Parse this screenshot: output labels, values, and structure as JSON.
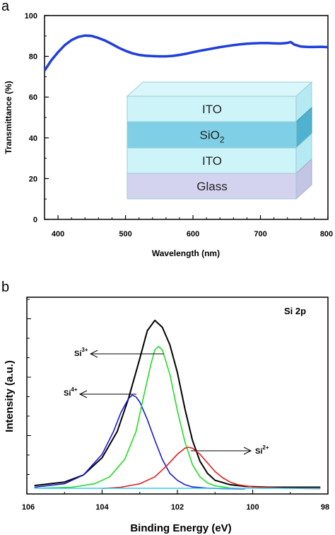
{
  "panel_a": {
    "letter": "a",
    "chart_data": {
      "type": "line",
      "title": "",
      "xlabel": "Wavelength (nm)",
      "ylabel": "Transmittance (%)",
      "xlim": [
        380,
        800
      ],
      "ylim": [
        0,
        100
      ],
      "xticks": [
        400,
        500,
        600,
        700,
        800
      ],
      "yticks": [
        0,
        20,
        40,
        60,
        80,
        100
      ],
      "grid": false,
      "series": [
        {
          "color": "#1f3fd9",
          "x": [
            380,
            390,
            400,
            410,
            420,
            430,
            440,
            450,
            460,
            470,
            480,
            490,
            500,
            510,
            520,
            530,
            540,
            550,
            560,
            570,
            580,
            590,
            600,
            610,
            620,
            630,
            640,
            650,
            660,
            670,
            680,
            690,
            700,
            710,
            720,
            730,
            740,
            745,
            750,
            760,
            770,
            780,
            790,
            800
          ],
          "y": [
            73,
            78,
            82,
            85.5,
            88,
            89.5,
            90.2,
            90,
            89,
            87.7,
            86,
            84.2,
            82.7,
            81.5,
            80.7,
            80.3,
            80.1,
            80,
            80,
            80.2,
            80.7,
            81.3,
            82,
            82.7,
            83.3,
            83.9,
            84.5,
            85,
            85.5,
            85.9,
            86.2,
            86.4,
            86.5,
            86.5,
            86.4,
            86.3,
            86.6,
            87,
            85.8,
            84.8,
            84.6,
            84.6,
            84.7,
            84.5
          ]
        }
      ]
    },
    "inset_layers": [
      {
        "label": "ITO",
        "color": "#cdf4f8"
      },
      {
        "label": "SiO",
        "sub": "2",
        "color": "#7fd0e6"
      },
      {
        "label": "ITO",
        "color": "#cdf4f8"
      },
      {
        "label": "Glass",
        "color": "#d3d3f0"
      }
    ]
  },
  "panel_b": {
    "letter": "b",
    "annotation": "Si 2p",
    "chart_data": {
      "type": "line",
      "title": "",
      "xlabel": "Binding Energy (eV)",
      "ylabel": "Intensity (a.u.)",
      "xlim": [
        106,
        98
      ],
      "ylim": [
        0,
        1.05
      ],
      "xticks": [
        106,
        104,
        102,
        100,
        98
      ],
      "x_reversed": true,
      "grid": false,
      "series": [
        {
          "color": "#000000",
          "x": [
            105.8,
            105,
            104.5,
            104,
            103.6,
            103.3,
            103,
            102.8,
            102.6,
            102.4,
            102.2,
            102,
            101.8,
            101.6,
            101.4,
            101.2,
            101,
            100.6,
            100.2,
            99.6,
            99,
            98.2
          ],
          "y": [
            0.02,
            0.04,
            0.08,
            0.18,
            0.33,
            0.52,
            0.75,
            0.91,
            0.97,
            0.93,
            0.83,
            0.67,
            0.46,
            0.28,
            0.16,
            0.09,
            0.05,
            0.025,
            0.015,
            0.01,
            0.01,
            0.01
          ]
        },
        {
          "color": "#1a1ad9",
          "x": [
            105.8,
            105,
            104.5,
            104,
            103.7,
            103.5,
            103.3,
            103.2,
            103.1,
            103,
            102.8,
            102.6,
            102.4,
            102.2,
            102,
            101.8,
            101.6,
            101.2,
            100.8,
            100.2
          ],
          "y": [
            0.01,
            0.03,
            0.08,
            0.2,
            0.33,
            0.44,
            0.52,
            0.54,
            0.53,
            0.5,
            0.4,
            0.28,
            0.17,
            0.09,
            0.05,
            0.025,
            0.012,
            0.005,
            0.002,
            0.001
          ]
        },
        {
          "color": "#22dd22",
          "x": [
            105.6,
            104.8,
            104.2,
            103.8,
            103.4,
            103.1,
            102.9,
            102.7,
            102.6,
            102.5,
            102.4,
            102.2,
            102,
            101.8,
            101.6,
            101.4,
            101.2,
            101,
            100.6,
            100.2
          ],
          "y": [
            0.005,
            0.01,
            0.03,
            0.07,
            0.17,
            0.33,
            0.53,
            0.72,
            0.8,
            0.82,
            0.8,
            0.66,
            0.45,
            0.27,
            0.14,
            0.07,
            0.035,
            0.018,
            0.006,
            0.002
          ]
        },
        {
          "color": "#e01c1c",
          "x": [
            104,
            103.5,
            103,
            102.6,
            102.3,
            102,
            101.8,
            101.7,
            101.6,
            101.4,
            101.2,
            101,
            100.8,
            100.6,
            100.4,
            100,
            99.6,
            99.2,
            98.6,
            98.2
          ],
          "y": [
            0.003,
            0.01,
            0.03,
            0.07,
            0.13,
            0.2,
            0.235,
            0.24,
            0.235,
            0.2,
            0.15,
            0.1,
            0.065,
            0.04,
            0.025,
            0.012,
            0.008,
            0.005,
            0.003,
            0.002
          ]
        },
        {
          "color": "#33ccee",
          "x": [
            105.8,
            98.2
          ],
          "y": [
            0.004,
            0.004
          ]
        }
      ]
    },
    "peak_labels": [
      {
        "text": "Si",
        "sup": "3+"
      },
      {
        "text": "Si",
        "sup": "4+"
      },
      {
        "text": "Si",
        "sup": "2+"
      }
    ]
  }
}
